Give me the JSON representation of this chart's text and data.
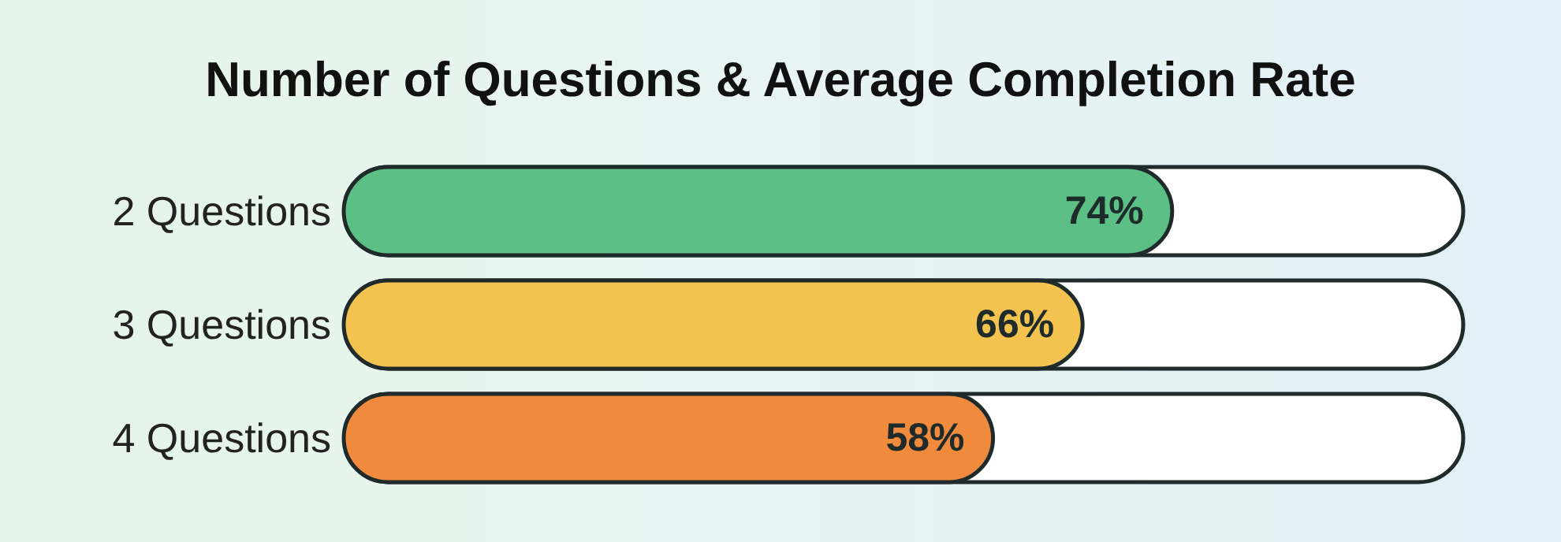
{
  "chart_data": {
    "type": "bar",
    "orientation": "horizontal",
    "title": "Number of Questions & Average Completion Rate",
    "categories": [
      "2 Questions",
      "3 Questions",
      "4 Questions"
    ],
    "values": [
      74,
      66,
      58
    ],
    "colors": [
      "#5cbf86",
      "#f3c24f",
      "#f08b3d"
    ],
    "value_labels": [
      "74%",
      "66%",
      "58%"
    ],
    "xlim": [
      0,
      100
    ],
    "tick_labels": "y",
    "grid": false,
    "legend": false
  }
}
